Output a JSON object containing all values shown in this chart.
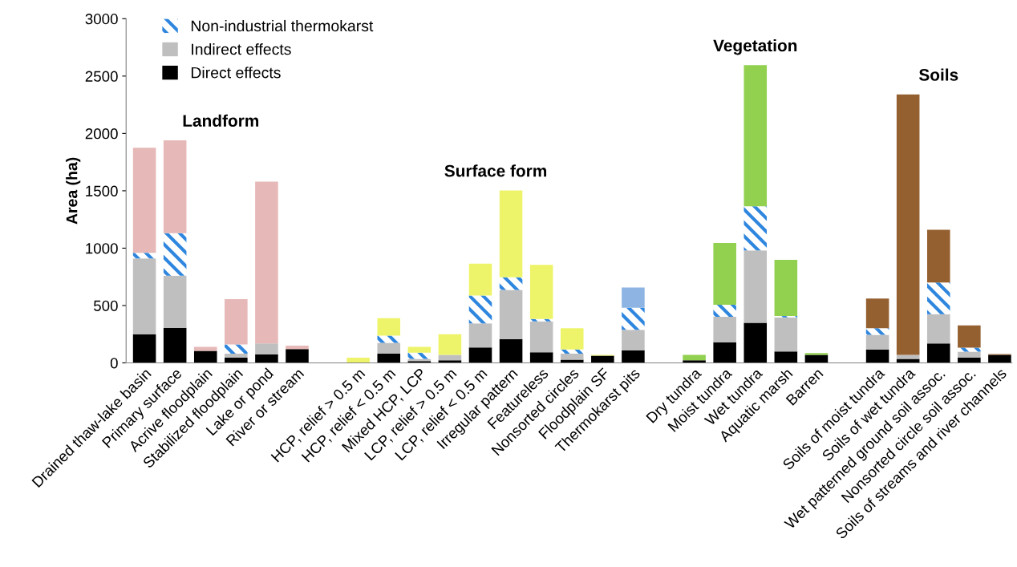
{
  "chart_data": {
    "type": "bar",
    "stacked": true,
    "ylabel": "Area (ha)",
    "ylim": [
      0,
      3000
    ],
    "yticks": [
      0,
      500,
      1000,
      1500,
      2000,
      2500,
      3000
    ],
    "grid": false,
    "legend": "top left",
    "categories": [
      "Drained thaw-lake basin",
      "Primary surface",
      "Acrive floodplain",
      "Stabilized floodplain",
      "Lake or pond",
      "River or stream",
      null,
      "HCP, relief > 0.5 m",
      "HCP, relief < 0.5 m",
      "Mixed HCP, LCP",
      "LCP, relief > 0.5 m",
      "LCP, relief < 0.5 m",
      "Irregular pattern",
      "Featureless",
      "Nonsorted circles",
      "Floodplain SF",
      "Thermokarst pits",
      null,
      "Dry tundra",
      "Moist tundra",
      "Wet tundra",
      "Aquatic marsh",
      "Barren",
      null,
      "Soils of moist tundra",
      "Soils of wet tundra",
      "Wet patterned ground soil assoc.",
      "Nonsorted circle soil assoc.",
      "Soils of streams and river channels"
    ],
    "series": [
      {
        "name": "Direct effects",
        "color": "#000000",
        "values": [
          250,
          305,
          105,
          45,
          75,
          120,
          null,
          0,
          80,
          16,
          23,
          135,
          207,
          93,
          28,
          63,
          110,
          null,
          23,
          180,
          350,
          100,
          70,
          null,
          117,
          35,
          170,
          47,
          70
        ]
      },
      {
        "name": "Indirect effects",
        "color": "#bfbfbf",
        "values": [
          660,
          455,
          0,
          35,
          95,
          0,
          null,
          0,
          95,
          19,
          47,
          210,
          429,
          268,
          52,
          0,
          179,
          null,
          0,
          221,
          630,
          297,
          0,
          null,
          128,
          35,
          255,
          51,
          0
        ]
      },
      {
        "name": "Non-industrial thermokarst",
        "color": "#2e86de",
        "values": [
          50,
          370,
          0,
          80,
          0,
          0,
          null,
          0,
          63,
          54,
          0,
          242,
          110,
          21,
          37,
          0,
          191,
          null,
          0,
          105,
          385,
          11,
          0,
          null,
          58,
          0,
          275,
          35,
          0
        ]
      },
      {
        "colors": [
          "#e6b8b7",
          "#e6b8b7",
          "#e6b8b7",
          "#e6b8b7",
          "#e6b8b7",
          "#e6b8b7",
          null,
          "#eef46a",
          "#eef46a",
          "#eef46a",
          "#eef46a",
          "#eef46a",
          "#eef46a",
          "#eef46a",
          "#eef46a",
          "#eef46a",
          "#8db4e2",
          null,
          "#92d050",
          "#92d050",
          "#92d050",
          "#92d050",
          "#92d050",
          null,
          "#956030",
          "#956030",
          "#956030",
          "#956030",
          "#956030"
        ],
        "values": [
          915,
          810,
          35,
          395,
          1410,
          30,
          null,
          45,
          152,
          51,
          180,
          278,
          757,
          473,
          186,
          7,
          177,
          null,
          47,
          539,
          1230,
          490,
          16,
          null,
          257,
          2270,
          460,
          194,
          7
        ]
      }
    ],
    "annotations": [
      "Landform",
      "Surface form",
      "Vegetation",
      "Soils"
    ]
  }
}
